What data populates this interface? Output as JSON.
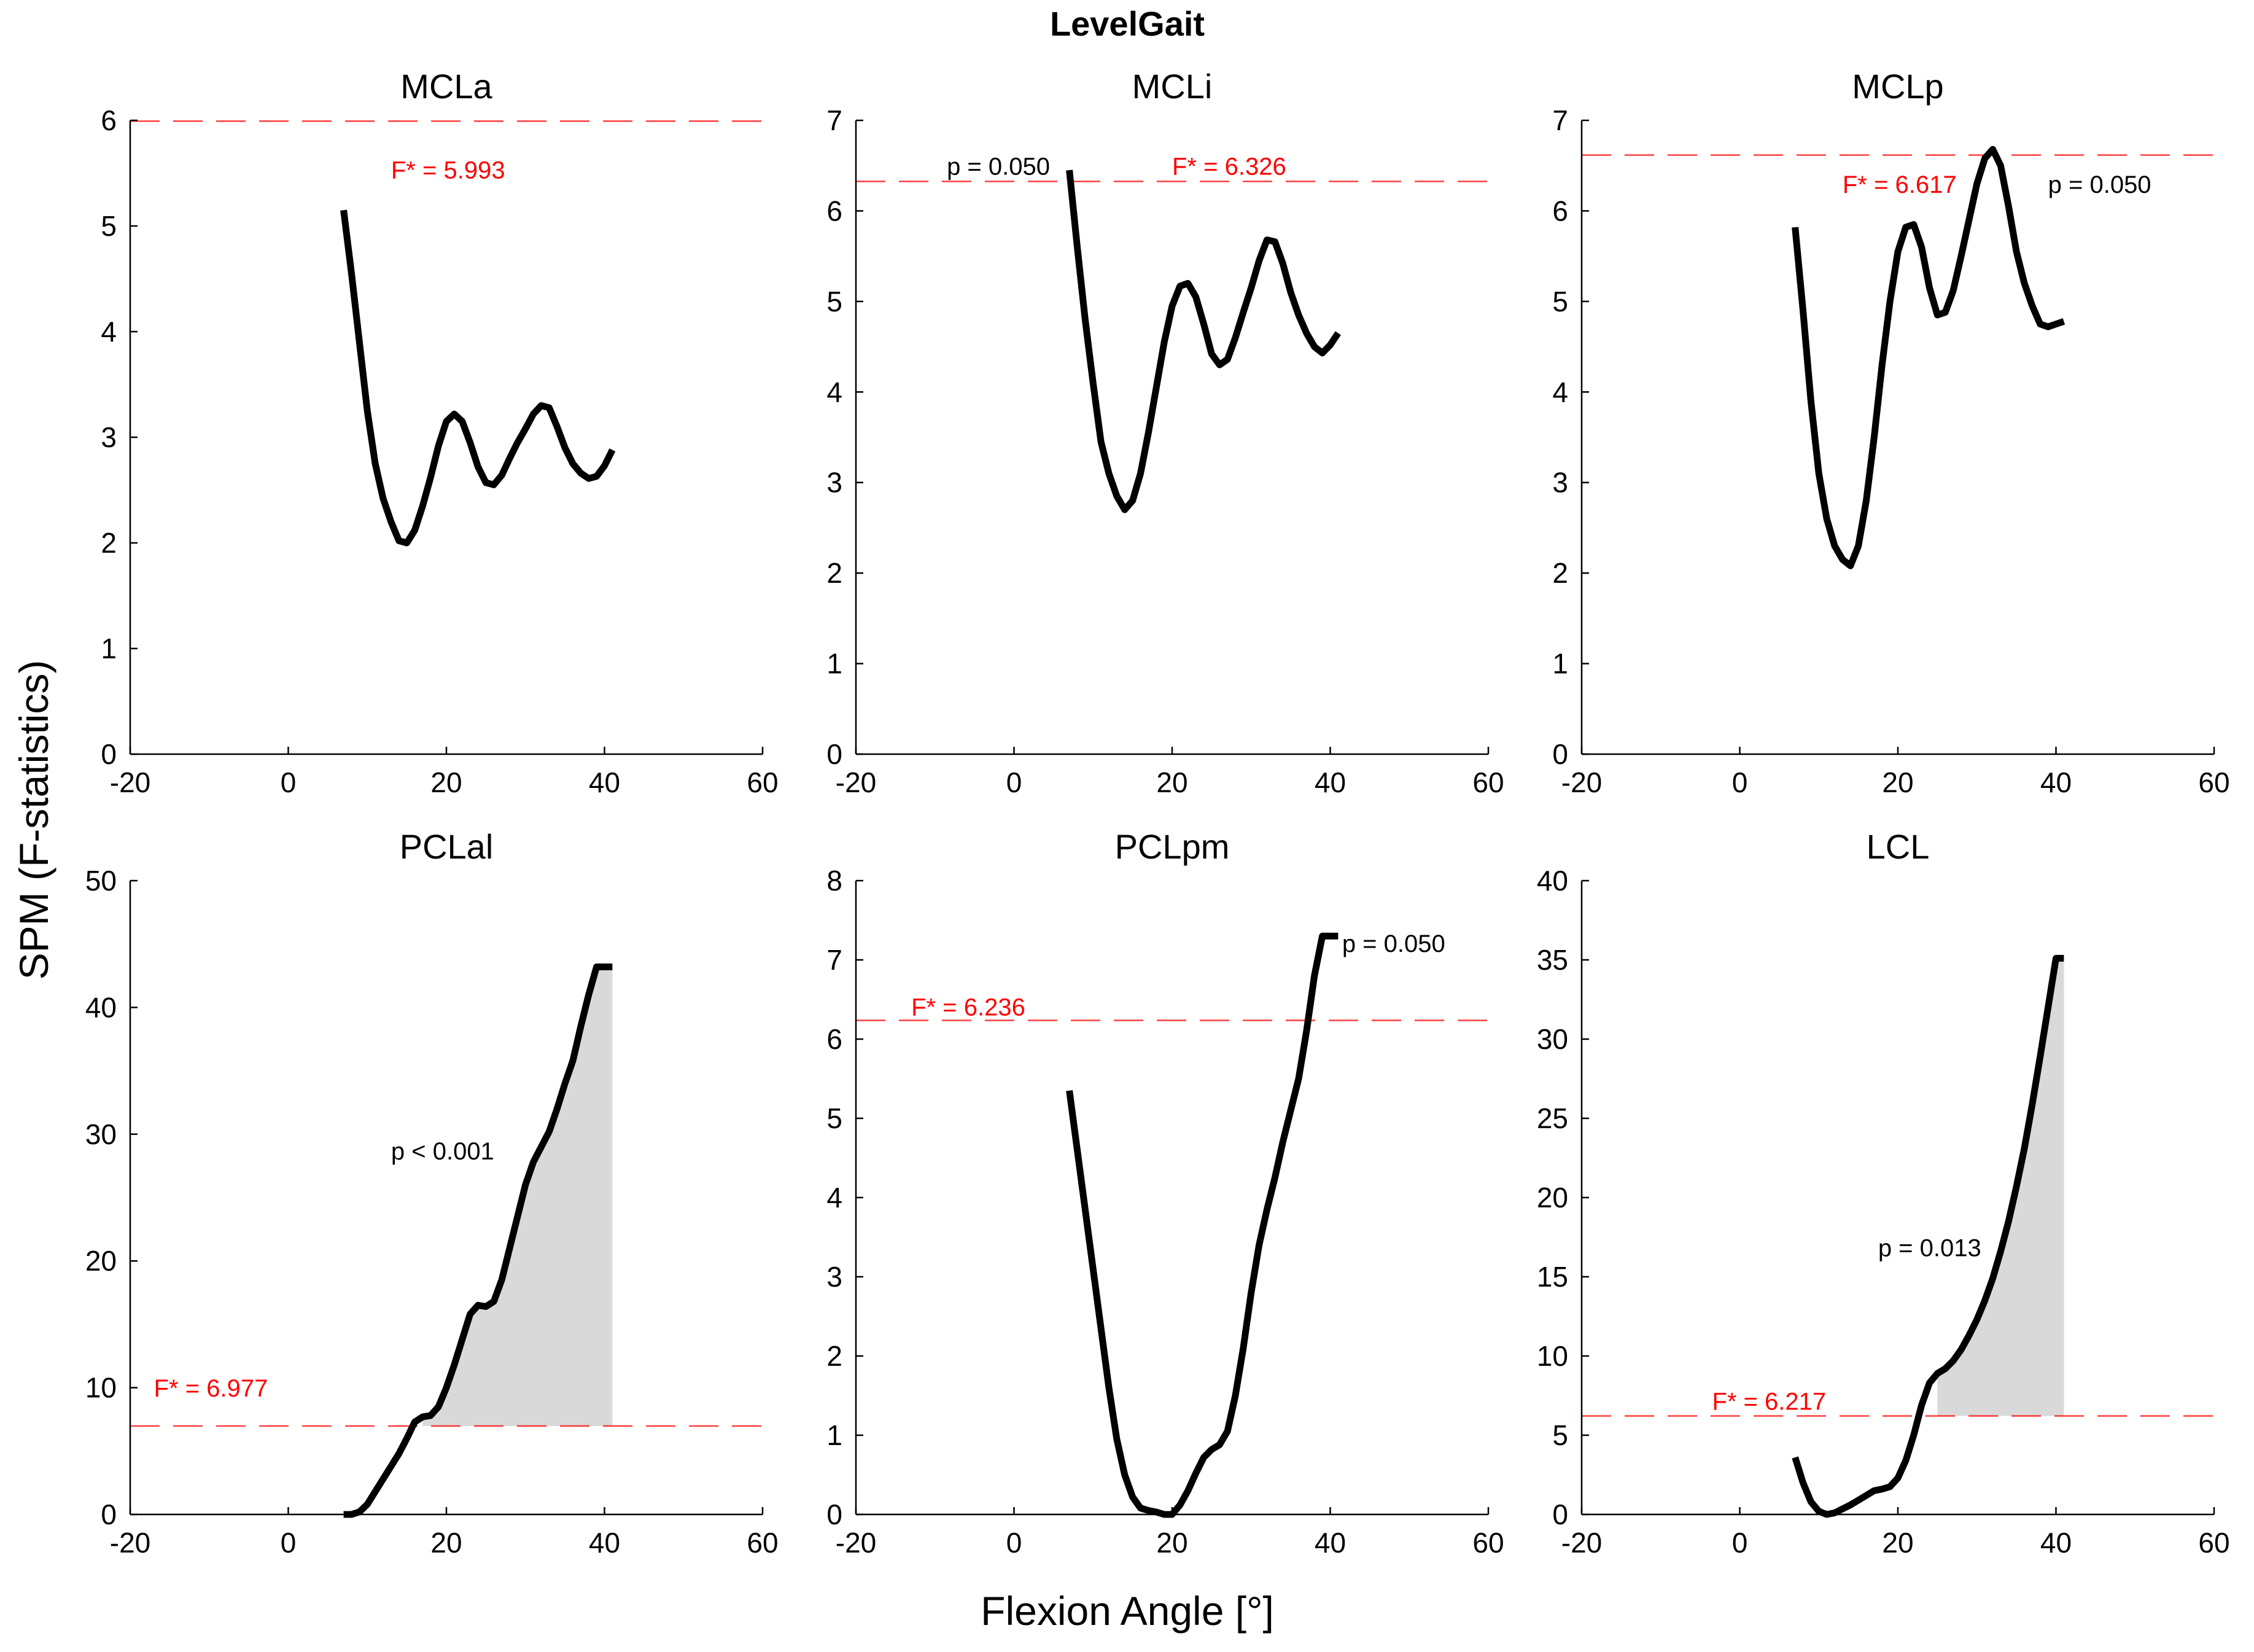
{
  "figure": {
    "suptitle": "LevelGait",
    "ylabel": "SPM (F-statistics)",
    "xlabel": "Flexion Angle [°]"
  },
  "colors": {
    "curve": "#000000",
    "threshold": "#ff0000",
    "cluster_fill": "#d9d9d9",
    "annotation_black": "#000000",
    "annotation_red": "#ff0000"
  },
  "chart_data": [
    {
      "type": "line",
      "title": "MCLa",
      "xlim": [
        -20,
        60
      ],
      "ylim": [
        0,
        6
      ],
      "xticks": [
        "-20",
        "0",
        "20",
        "40",
        "60"
      ],
      "yticks": [
        "0",
        "1",
        "2",
        "3",
        "4",
        "5",
        "6"
      ],
      "threshold": 5.993,
      "threshold_label": "F* = 5.993",
      "threshold_label_pos": [
        13,
        5.45
      ],
      "p_labels": [],
      "clusters": [],
      "x": [
        7,
        8,
        9,
        10,
        11,
        12,
        13,
        14,
        15,
        16,
        17,
        18,
        19,
        20,
        21,
        22,
        23,
        24,
        25,
        26,
        27,
        28,
        29,
        30,
        31,
        32,
        33,
        34,
        35,
        36,
        37,
        38,
        39,
        40,
        41
      ],
      "y": [
        5.15,
        4.55,
        3.9,
        3.25,
        2.75,
        2.42,
        2.2,
        2.02,
        2.0,
        2.12,
        2.35,
        2.62,
        2.92,
        3.15,
        3.22,
        3.15,
        2.95,
        2.72,
        2.57,
        2.55,
        2.64,
        2.8,
        2.95,
        3.08,
        3.22,
        3.3,
        3.28,
        3.1,
        2.9,
        2.75,
        2.66,
        2.61,
        2.63,
        2.73,
        2.88
      ]
    },
    {
      "type": "line",
      "title": "MCLi",
      "xlim": [
        -20,
        60
      ],
      "ylim": [
        0,
        7
      ],
      "xticks": [
        "-20",
        "0",
        "20",
        "40",
        "60"
      ],
      "yticks": [
        "0",
        "1",
        "2",
        "3",
        "4",
        "5",
        "6",
        "7"
      ],
      "threshold": 6.326,
      "threshold_label": "F* = 6.326",
      "threshold_label_pos": [
        20,
        6.4
      ],
      "p_labels": [
        {
          "text": "p = 0.050",
          "pos": [
            -8.5,
            6.4
          ]
        }
      ],
      "clusters": [],
      "x": [
        7,
        8,
        9,
        10,
        11,
        12,
        13,
        14,
        15,
        16,
        17,
        18,
        19,
        20,
        21,
        22,
        23,
        24,
        25,
        26,
        27,
        28,
        29,
        30,
        31,
        32,
        33,
        34,
        35,
        36,
        37,
        38,
        39,
        40,
        41
      ],
      "y": [
        6.45,
        5.6,
        4.8,
        4.1,
        3.45,
        3.1,
        2.85,
        2.7,
        2.8,
        3.1,
        3.55,
        4.05,
        4.55,
        4.95,
        5.17,
        5.2,
        5.05,
        4.75,
        4.42,
        4.3,
        4.36,
        4.6,
        4.88,
        5.15,
        5.45,
        5.68,
        5.66,
        5.42,
        5.1,
        4.85,
        4.65,
        4.5,
        4.43,
        4.52,
        4.65
      ]
    },
    {
      "type": "line",
      "title": "MCLp",
      "xlim": [
        -20,
        60
      ],
      "ylim": [
        0,
        7
      ],
      "xticks": [
        "-20",
        "0",
        "20",
        "40",
        "60"
      ],
      "yticks": [
        "0",
        "1",
        "2",
        "3",
        "4",
        "5",
        "6",
        "7"
      ],
      "threshold": 6.617,
      "threshold_label": "F* = 6.617",
      "threshold_label_pos": [
        13,
        6.2
      ],
      "p_labels": [
        {
          "text": "p = 0.050",
          "pos": [
            39,
            6.2
          ]
        }
      ],
      "clusters": [],
      "x": [
        7,
        8,
        9,
        10,
        11,
        12,
        13,
        14,
        15,
        16,
        17,
        18,
        19,
        20,
        21,
        22,
        23,
        24,
        25,
        26,
        27,
        28,
        29,
        30,
        31,
        32,
        33,
        34,
        35,
        36,
        37,
        38,
        39,
        40,
        41
      ],
      "y": [
        5.82,
        4.9,
        3.9,
        3.1,
        2.6,
        2.3,
        2.15,
        2.08,
        2.3,
        2.8,
        3.5,
        4.3,
        5.0,
        5.55,
        5.82,
        5.85,
        5.6,
        5.15,
        4.85,
        4.88,
        5.12,
        5.5,
        5.9,
        6.3,
        6.58,
        6.68,
        6.5,
        6.05,
        5.55,
        5.2,
        4.95,
        4.75,
        4.72,
        4.75,
        4.78
      ]
    },
    {
      "type": "line",
      "title": "PCLal",
      "xlim": [
        -20,
        60
      ],
      "ylim": [
        0,
        50
      ],
      "xticks": [
        "-20",
        "0",
        "20",
        "40",
        "60"
      ],
      "yticks": [
        "0",
        "10",
        "20",
        "30",
        "40",
        "50"
      ],
      "threshold": 6.977,
      "threshold_label": "F* = 6.977",
      "threshold_label_pos": [
        -17,
        9.3
      ],
      "p_labels": [
        {
          "text": "p < 0.001",
          "pos": [
            13,
            28
          ]
        }
      ],
      "clusters": [
        [
          17,
          41
        ]
      ],
      "x": [
        7,
        8,
        9,
        10,
        11,
        12,
        13,
        14,
        15,
        16,
        17,
        18,
        19,
        20,
        21,
        22,
        23,
        24,
        25,
        26,
        27,
        28,
        29,
        30,
        31,
        32,
        33,
        34,
        35,
        36,
        37,
        38,
        39,
        40,
        41
      ],
      "y": [
        0.0,
        0.0,
        0.2,
        0.8,
        1.8,
        2.8,
        3.8,
        4.8,
        6.0,
        7.3,
        7.7,
        7.8,
        8.5,
        10.0,
        11.8,
        13.8,
        15.8,
        16.5,
        16.4,
        16.8,
        18.5,
        21.0,
        23.5,
        26.0,
        27.8,
        29.0,
        30.2,
        32.0,
        34.0,
        35.8,
        38.5,
        41.0,
        43.2,
        43.2,
        43.2
      ]
    },
    {
      "type": "line",
      "title": "PCLpm",
      "xlim": [
        -20,
        60
      ],
      "ylim": [
        0,
        8
      ],
      "xticks": [
        "-20",
        "0",
        "20",
        "40",
        "60"
      ],
      "yticks": [
        "0",
        "1",
        "2",
        "3",
        "4",
        "5",
        "6",
        "7",
        "8"
      ],
      "threshold": 6.236,
      "threshold_label": "F* = 6.236",
      "threshold_label_pos": [
        -13,
        6.3
      ],
      "p_labels": [
        {
          "text": "p = 0.050",
          "pos": [
            41.5,
            7.1
          ]
        }
      ],
      "clusters": [],
      "x": [
        7,
        8,
        9,
        10,
        11,
        12,
        13,
        14,
        15,
        16,
        17,
        18,
        19,
        20,
        21,
        22,
        23,
        24,
        25,
        26,
        27,
        28,
        29,
        30,
        31,
        32,
        33,
        34,
        35,
        36,
        37,
        38,
        39,
        40,
        41
      ],
      "y": [
        5.35,
        4.6,
        3.85,
        3.1,
        2.35,
        1.6,
        0.95,
        0.5,
        0.22,
        0.08,
        0.05,
        0.03,
        0.0,
        0.0,
        0.12,
        0.3,
        0.52,
        0.72,
        0.82,
        0.88,
        1.05,
        1.5,
        2.1,
        2.8,
        3.4,
        3.85,
        4.25,
        4.7,
        5.1,
        5.5,
        6.1,
        6.8,
        7.3,
        7.3,
        7.3
      ]
    },
    {
      "type": "line",
      "title": "LCL",
      "xlim": [
        -20,
        60
      ],
      "ylim": [
        0,
        40
      ],
      "xticks": [
        "-20",
        "0",
        "20",
        "40",
        "60"
      ],
      "yticks": [
        "0",
        "5",
        "10",
        "15",
        "20",
        "25",
        "30",
        "35",
        "40"
      ],
      "threshold": 6.217,
      "threshold_label": "F* = 6.217",
      "threshold_label_pos": [
        -3.5,
        6.6
      ],
      "p_labels": [
        {
          "text": "p = 0.013",
          "pos": [
            17.5,
            16.3
          ]
        }
      ],
      "clusters": [
        [
          25,
          41
        ]
      ],
      "x": [
        7,
        8,
        9,
        10,
        11,
        12,
        13,
        14,
        15,
        16,
        17,
        18,
        19,
        20,
        21,
        22,
        23,
        24,
        25,
        26,
        27,
        28,
        29,
        30,
        31,
        32,
        33,
        34,
        35,
        36,
        37,
        38,
        39,
        40,
        41
      ],
      "y": [
        3.6,
        2.0,
        0.8,
        0.2,
        0.0,
        0.1,
        0.35,
        0.6,
        0.9,
        1.2,
        1.5,
        1.6,
        1.75,
        2.3,
        3.4,
        5.0,
        6.9,
        8.3,
        8.9,
        9.2,
        9.7,
        10.4,
        11.3,
        12.3,
        13.5,
        14.9,
        16.6,
        18.5,
        20.7,
        23.1,
        25.9,
        28.9,
        32.0,
        35.1,
        35.1
      ]
    }
  ]
}
